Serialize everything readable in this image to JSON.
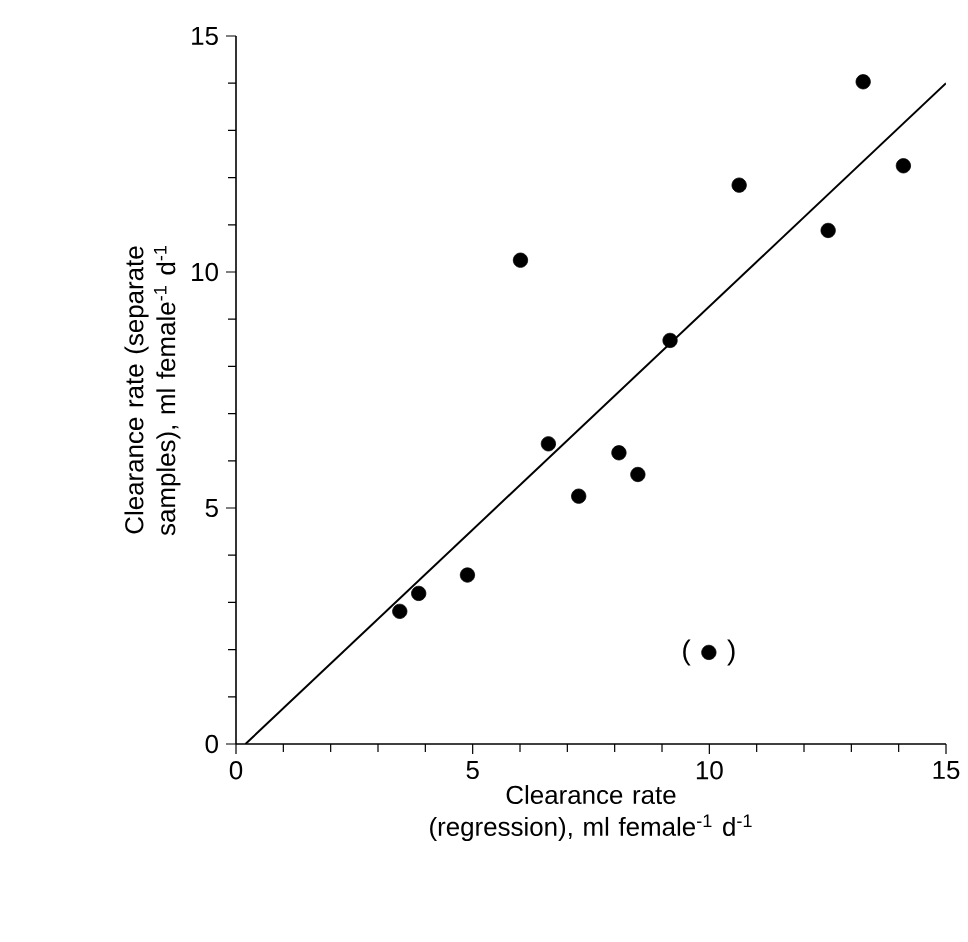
{
  "chart_data": {
    "type": "scatter",
    "xlabel": "Clearance rate (regression), ml female$^{-1}$ d$^{-1}$",
    "ylabel": "Clearance rate (separate samples), ml female$^{-1}$ d$^{-1}$",
    "xlim": [
      0,
      15
    ],
    "ylim": [
      0,
      15
    ],
    "xticks": [
      0,
      5,
      10,
      15
    ],
    "yticks": [
      0,
      5,
      10,
      15
    ],
    "grid": false,
    "series": [
      {
        "color": "#000000",
        "marker": "circle",
        "x": [
          3.46,
          3.86,
          4.89,
          6.01,
          6.6,
          7.24,
          8.09,
          8.49,
          9.17,
          10.63,
          12.51,
          13.25,
          14.1
        ],
        "values": [
          2.81,
          3.19,
          3.58,
          10.25,
          6.36,
          5.25,
          6.17,
          5.71,
          8.55,
          11.84,
          10.88,
          14.03,
          12.25
        ]
      },
      {
        "color": "#000000",
        "marker": "circle",
        "x": [
          9.99
        ],
        "values": [
          1.94
        ]
      },
      {
        "type": "line",
        "color": "#000000",
        "marker": "none",
        "line_style": "solid",
        "x": [
          0.2,
          15
        ],
        "values": [
          0,
          14
        ]
      }
    ],
    "annotations": [
      {
        "text": "( )",
        "x": 9.99,
        "y": 1.94
      }
    ]
  }
}
